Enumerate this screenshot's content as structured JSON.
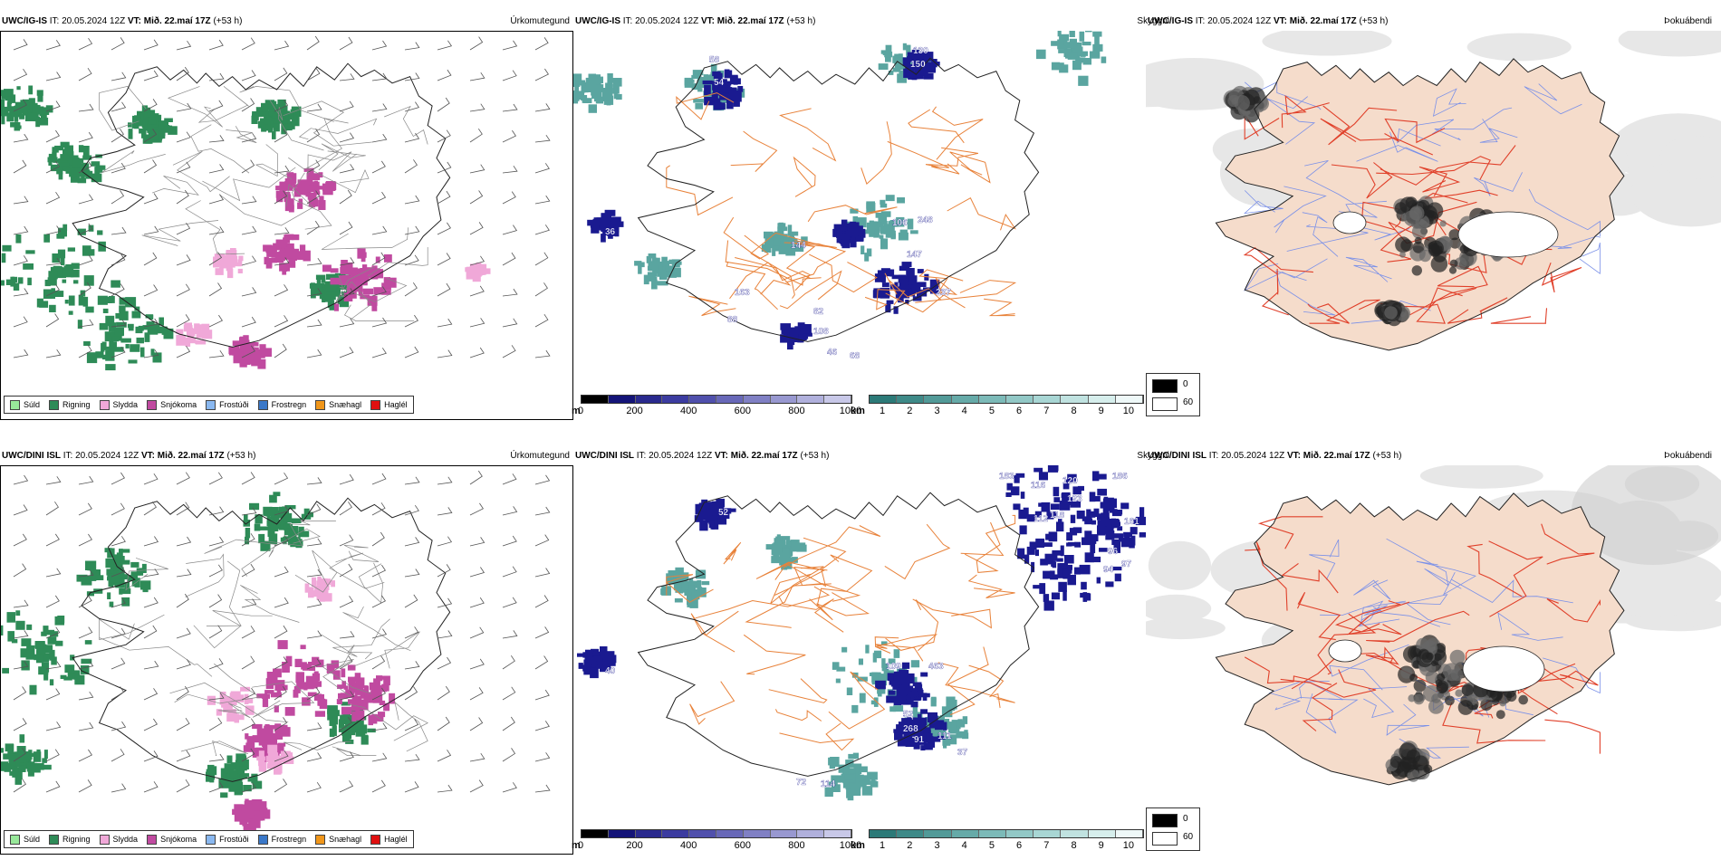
{
  "panels": [
    {
      "id": "top-precip",
      "model": "UWC/IG-IS",
      "it_label": "IT:",
      "it_value": "20.05.2024 12Z",
      "vt_label": "VT:",
      "vt_value": "Mið. 22.maí 17Z",
      "lead": "(+53 h)",
      "title": "Úrkomutegund"
    },
    {
      "id": "top-ceiling",
      "model": "UWC/IG-IS",
      "it_label": "IT:",
      "it_value": "20.05.2024 12Z",
      "vt_label": "VT:",
      "vt_value": "Mið. 22.maí 17Z",
      "lead": "(+53 h)",
      "title": "Skyggni"
    },
    {
      "id": "top-fog",
      "model": "UWC/IG-IS",
      "it_label": "IT:",
      "it_value": "20.05.2024 12Z",
      "vt_label": "",
      "vt_value": "",
      "lead": "",
      "title": "Þokuábendi"
    },
    {
      "id": "bottom-precip",
      "model": "UWC/DINI ISL",
      "it_label": "IT:",
      "it_value": "20.05.2024 12Z",
      "vt_label": "VT:",
      "vt_value": "Mið. 22.maí 17Z",
      "lead": "(+53 h)",
      "title": "Úrkomutegund"
    },
    {
      "id": "bottom-ceiling",
      "model": "UWC/DINI ISL",
      "it_label": "IT:",
      "it_value": "20.05.2024 12Z",
      "vt_label": "VT:",
      "vt_value": "Mið. 22.maí 17Z",
      "lead": "(+53 h)",
      "title": "Skyggni"
    },
    {
      "id": "bottom-fog",
      "model": "UWC/DINI ISL",
      "it_label": "IT:",
      "it_value": "20.05.2024 12Z",
      "vt_label": "",
      "vt_value": "",
      "lead": "",
      "title": "Þokuábendi"
    }
  ],
  "precip_legend": [
    {
      "label": "Súld",
      "color": "#98e89a"
    },
    {
      "label": "Rigning",
      "color": "#2e8b57"
    },
    {
      "label": "Slydda",
      "color": "#f0a8d8"
    },
    {
      "label": "Snjókoma",
      "color": "#c04aa0"
    },
    {
      "label": "Frostúði",
      "color": "#8ab8f0"
    },
    {
      "label": "Frostregn",
      "color": "#3a78c8"
    },
    {
      "label": "Snæhagl",
      "color": "#f0961a"
    },
    {
      "label": "Haglél",
      "color": "#e01010"
    }
  ],
  "ceiling_colorbar": {
    "unit": "m",
    "ticks": [
      "0",
      "200",
      "400",
      "600",
      "800",
      "1000"
    ],
    "colors": [
      "#000000",
      "#141478",
      "#2a2a8e",
      "#3c3ca0",
      "#5050ac",
      "#6868b8",
      "#8080c4",
      "#9898d0",
      "#b0b0dc",
      "#c8c8e8"
    ]
  },
  "visibility_colorbar": {
    "unit": "km",
    "ticks": [
      "1",
      "2",
      "3",
      "4",
      "5",
      "6",
      "7",
      "8",
      "9",
      "10"
    ],
    "colors": [
      "#2c7a78",
      "#3e8a88",
      "#529a98",
      "#66aaa8",
      "#7cbab8",
      "#92c8c6",
      "#a8d6d4",
      "#c0e2e0",
      "#d6eeec",
      "#eef8f8"
    ]
  },
  "fog_legend": [
    {
      "label": "0",
      "color": "#000000"
    },
    {
      "label": "60",
      "color": "#ffffff"
    }
  ],
  "ceiling_labels_top": [
    "130",
    "150",
    "58",
    "54",
    "36",
    "144",
    "106",
    "248",
    "147",
    "237",
    "163",
    "88",
    "82",
    "108",
    "46",
    "68"
  ],
  "ceiling_labels_bottom": [
    "183",
    "116",
    "120",
    "186",
    "123",
    "112",
    "118",
    "161",
    "52",
    "96",
    "97",
    "94",
    "40",
    "109",
    "463",
    "52",
    "268",
    "91",
    "111",
    "37",
    "72",
    "114"
  ],
  "colors": {
    "land": "#f5dccb",
    "road": "#e8823a",
    "fog_road": "#e0402a",
    "river": "#7a90e8",
    "rain": "#2e8b57",
    "snow": "#c04aa0",
    "sleet": "#f0a8d8",
    "ceiling_fill": "#1a1a90",
    "vis_fill": "#5aa5a0"
  }
}
